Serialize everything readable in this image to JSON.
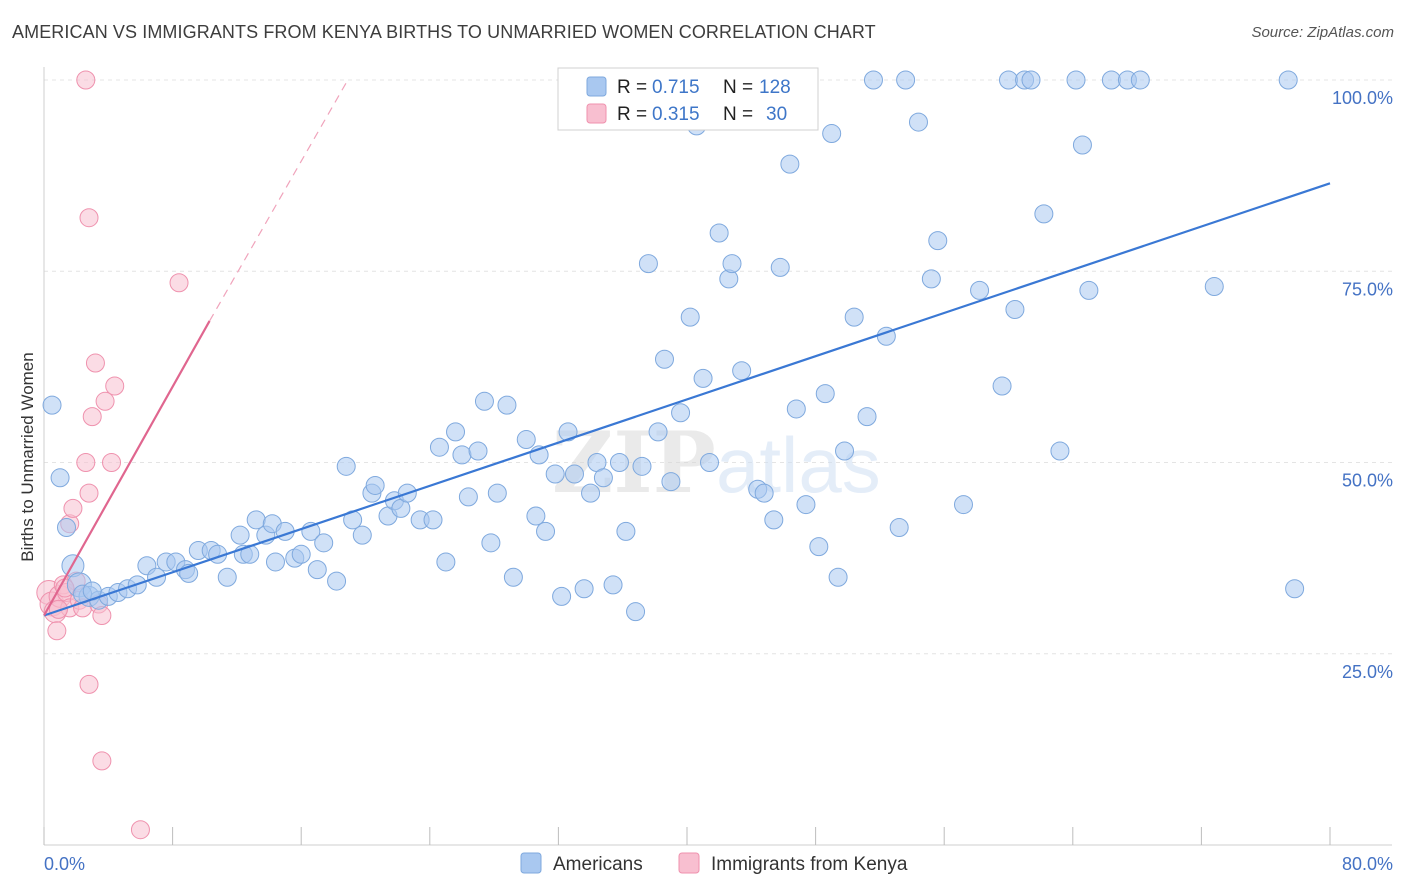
{
  "title": "AMERICAN VS IMMIGRANTS FROM KENYA BIRTHS TO UNMARRIED WOMEN CORRELATION CHART",
  "source": "Source: ZipAtlas.com",
  "watermark": {
    "zip": "ZIP",
    "atlas": "atlas"
  },
  "colors": {
    "americans_fill": "#a9c8f0",
    "americans_stroke": "#7fa9de",
    "americans_line": "#3a78d4",
    "kenya_fill": "#f8bfd0",
    "kenya_stroke": "#ef92ae",
    "kenya_line": "#e0668f",
    "tick_color": "#4472c4",
    "grid": "#e4e4e4"
  },
  "legend": {
    "rows": [
      {
        "r_label": "R =",
        "r_value": "0.715",
        "n_label": "N =",
        "n_value": "128"
      },
      {
        "r_label": "R =",
        "r_value": "0.315",
        "n_label": "N =",
        "n_value": "30"
      }
    ]
  },
  "chart_data": {
    "type": "scatter",
    "title": "AMERICAN VS IMMIGRANTS FROM KENYA BIRTHS TO UNMARRIED WOMEN CORRELATION CHART",
    "xlabel": "",
    "ylabel": "Births to Unmarried Women",
    "xlim": [
      0,
      80
    ],
    "ylim": [
      0,
      103
    ],
    "x_tick_labels": [
      "0.0%",
      "80.0%"
    ],
    "y_ticks": [
      25,
      50,
      75,
      100
    ],
    "y_tick_labels": [
      "25.0%",
      "50.0%",
      "75.0%",
      "100.0%"
    ],
    "grid": true,
    "legend_position": "top-center",
    "series": [
      {
        "name": "Americans",
        "trend": {
          "x0": 0,
          "y0": 30,
          "x1": 80,
          "y1": 86.5,
          "dashed_extension": false
        },
        "points": [
          [
            0.5,
            57.5,
            9
          ],
          [
            1,
            48,
            9
          ],
          [
            1.4,
            41.5,
            9
          ],
          [
            1.8,
            36.5,
            11
          ],
          [
            2.2,
            34,
            12
          ],
          [
            2.8,
            32.5,
            10
          ],
          [
            3.4,
            32,
            9
          ],
          [
            4,
            32.5,
            9
          ],
          [
            4.6,
            33,
            9
          ],
          [
            5.2,
            33.5,
            9
          ],
          [
            5.8,
            34,
            9
          ],
          [
            6.4,
            36.5,
            9
          ],
          [
            7,
            35,
            9
          ],
          [
            7.6,
            37,
            9
          ],
          [
            8.2,
            37,
            9
          ],
          [
            8.8,
            36,
            9
          ],
          [
            9,
            35.5,
            9
          ],
          [
            9.6,
            38.5,
            9
          ],
          [
            10.4,
            38.5,
            9
          ],
          [
            10.8,
            38,
            9
          ],
          [
            11.4,
            35,
            9
          ],
          [
            12.2,
            40.5,
            9
          ],
          [
            12.4,
            38,
            9
          ],
          [
            12.8,
            38,
            9
          ],
          [
            13.2,
            42.5,
            9
          ],
          [
            13.8,
            40.5,
            9
          ],
          [
            14.2,
            42,
            9
          ],
          [
            14.4,
            37,
            9
          ],
          [
            15,
            41,
            9
          ],
          [
            15.6,
            37.5,
            9
          ],
          [
            16,
            38,
            9
          ],
          [
            16.6,
            41,
            9
          ],
          [
            17,
            36,
            9
          ],
          [
            17.4,
            39.5,
            9
          ],
          [
            18.2,
            34.5,
            9
          ],
          [
            18.8,
            49.5,
            9
          ],
          [
            19.2,
            42.5,
            9
          ],
          [
            19.8,
            40.5,
            9
          ],
          [
            20.4,
            46,
            9
          ],
          [
            20.6,
            47,
            9
          ],
          [
            21.4,
            43,
            9
          ],
          [
            21.8,
            45,
            9
          ],
          [
            22.2,
            44,
            9
          ],
          [
            22.6,
            46,
            9
          ],
          [
            23.4,
            42.5,
            9
          ],
          [
            24.2,
            42.5,
            9
          ],
          [
            24.6,
            52,
            9
          ],
          [
            25,
            37,
            9
          ],
          [
            25.6,
            54,
            9
          ],
          [
            26,
            51,
            9
          ],
          [
            26.4,
            45.5,
            9
          ],
          [
            27,
            51.5,
            9
          ],
          [
            27.4,
            58,
            9
          ],
          [
            27.8,
            39.5,
            9
          ],
          [
            28.2,
            46,
            9
          ],
          [
            28.8,
            57.5,
            9
          ],
          [
            29.2,
            35,
            9
          ],
          [
            30,
            53,
            9
          ],
          [
            30.6,
            43,
            9
          ],
          [
            30.8,
            51,
            9
          ],
          [
            31.2,
            41,
            9
          ],
          [
            31.8,
            48.5,
            9
          ],
          [
            32.2,
            32.5,
            9
          ],
          [
            32.6,
            54,
            9
          ],
          [
            33,
            48.5,
            9
          ],
          [
            33.6,
            33.5,
            9
          ],
          [
            34,
            46,
            9
          ],
          [
            34.4,
            50,
            9
          ],
          [
            34.8,
            48,
            9
          ],
          [
            35.4,
            34,
            9
          ],
          [
            35.8,
            50,
            9
          ],
          [
            36.2,
            41,
            9
          ],
          [
            36.8,
            30.5,
            9
          ],
          [
            37.2,
            49.5,
            9
          ],
          [
            37.6,
            76,
            9
          ],
          [
            38.2,
            54,
            9
          ],
          [
            38.6,
            63.5,
            9
          ],
          [
            39,
            47.5,
            9
          ],
          [
            39.6,
            56.5,
            9
          ],
          [
            40.2,
            69,
            9
          ],
          [
            40.6,
            94,
            9
          ],
          [
            41,
            61,
            9
          ],
          [
            41.4,
            50,
            9
          ],
          [
            42,
            80,
            9
          ],
          [
            42.6,
            74,
            9
          ],
          [
            42.8,
            76,
            9
          ],
          [
            43.4,
            62,
            9
          ],
          [
            44.4,
            46.5,
            9
          ],
          [
            44.8,
            46,
            9
          ],
          [
            45.4,
            42.5,
            9
          ],
          [
            45.8,
            75.5,
            9
          ],
          [
            46.4,
            89,
            9
          ],
          [
            46.8,
            57,
            9
          ],
          [
            47.4,
            44.5,
            9
          ],
          [
            48.2,
            39,
            9
          ],
          [
            48.6,
            59,
            9
          ],
          [
            49,
            93,
            9
          ],
          [
            49.4,
            35,
            9
          ],
          [
            49.8,
            51.5,
            9
          ],
          [
            50.4,
            69,
            9
          ],
          [
            51.2,
            56,
            9
          ],
          [
            51.6,
            100,
            9
          ],
          [
            52.4,
            66.5,
            9
          ],
          [
            53.2,
            41.5,
            9
          ],
          [
            53.6,
            100,
            9
          ],
          [
            54.4,
            94.5,
            9
          ],
          [
            55.2,
            74,
            9
          ],
          [
            55.6,
            79,
            9
          ],
          [
            57.2,
            44.5,
            9
          ],
          [
            58.2,
            72.5,
            9
          ],
          [
            59.6,
            60,
            9
          ],
          [
            60,
            100,
            9
          ],
          [
            60.4,
            70,
            9
          ],
          [
            61,
            100,
            9
          ],
          [
            61.4,
            100,
            9
          ],
          [
            62.2,
            82.5,
            9
          ],
          [
            63.2,
            51.5,
            9
          ],
          [
            64.2,
            100,
            9
          ],
          [
            64.6,
            91.5,
            9
          ],
          [
            65,
            72.5,
            9
          ],
          [
            66.4,
            100,
            9
          ],
          [
            67.4,
            100,
            9
          ],
          [
            68.2,
            100,
            9
          ],
          [
            72.8,
            73,
            9
          ],
          [
            77.4,
            100,
            9
          ],
          [
            77.8,
            33.5,
            9
          ],
          [
            2.4,
            32.8,
            9
          ],
          [
            3,
            33.2,
            9
          ]
        ]
      },
      {
        "name": "Immigrants from Kenya",
        "trend": {
          "x0": 0,
          "y0": 30,
          "x1": 10.3,
          "y1": 68.5,
          "dash_x1": 18.9,
          "dash_y1": 100,
          "dashed_extension": true
        },
        "points": [
          [
            0.3,
            33,
            12
          ],
          [
            0.5,
            31.5,
            12
          ],
          [
            0.7,
            30.5,
            11
          ],
          [
            0.8,
            28,
            9
          ],
          [
            1,
            32.5,
            11
          ],
          [
            1.2,
            34,
            9
          ],
          [
            1.4,
            33,
            9
          ],
          [
            1.6,
            42,
            9
          ],
          [
            1.6,
            31,
            9
          ],
          [
            1.8,
            44,
            9
          ],
          [
            2,
            34.5,
            9
          ],
          [
            2.2,
            32,
            9
          ],
          [
            2.4,
            31,
            9
          ],
          [
            2.6,
            100,
            9
          ],
          [
            2.6,
            50,
            9
          ],
          [
            2.8,
            82,
            9
          ],
          [
            2.8,
            46,
            9
          ],
          [
            2.8,
            21,
            9
          ],
          [
            3,
            56,
            9
          ],
          [
            3.2,
            63,
            9
          ],
          [
            3.4,
            31.5,
            9
          ],
          [
            3.6,
            30,
            9
          ],
          [
            3.6,
            11,
            9
          ],
          [
            3.8,
            58,
            9
          ],
          [
            4.2,
            50,
            9
          ],
          [
            4.4,
            60,
            9
          ],
          [
            6,
            2,
            9
          ],
          [
            8.4,
            73.5,
            9
          ],
          [
            0.9,
            30.8,
            9
          ],
          [
            1.3,
            33.6,
            9
          ]
        ]
      }
    ]
  },
  "bottom_legend": [
    {
      "label": "Americans"
    },
    {
      "label": "Immigrants from Kenya"
    }
  ]
}
